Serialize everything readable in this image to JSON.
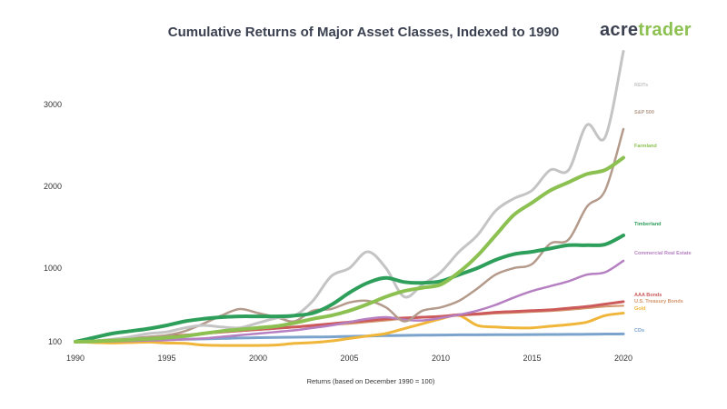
{
  "brand": {
    "part1": "acre",
    "part2": "trader"
  },
  "chart_data": {
    "type": "line",
    "title": "Cumulative Returns of Major Asset Classes, Indexed to 1990",
    "xlabel": "Returns (based on December 1990 = 100)",
    "ylabel": "",
    "xlim": [
      1990,
      2020
    ],
    "ylim": [
      100,
      3700
    ],
    "x_ticks": [
      1990,
      1995,
      2000,
      2005,
      2010,
      2015,
      2020
    ],
    "y_ticks": [
      100,
      1000,
      2000,
      3000
    ],
    "grid": false,
    "legend": "inline-right",
    "x": [
      1990,
      1991,
      1992,
      1993,
      1994,
      1995,
      1996,
      1997,
      1998,
      1999,
      2000,
      2001,
      2002,
      2003,
      2004,
      2005,
      2006,
      2007,
      2008,
      2009,
      2010,
      2011,
      2012,
      2013,
      2014,
      2015,
      2016,
      2017,
      2018,
      2019,
      2020
    ],
    "series": [
      {
        "name": "REITs",
        "color": "#c4c4c4",
        "width": 3,
        "values": [
          100,
          110,
          130,
          160,
          200,
          220,
          270,
          300,
          280,
          270,
          330,
          390,
          420,
          600,
          900,
          1000,
          1200,
          1000,
          650,
          800,
          950,
          1200,
          1400,
          1700,
          1850,
          1950,
          2200,
          2200,
          2750,
          2600,
          3650
        ]
      },
      {
        "name": "S&P 500",
        "color": "#b49a8b",
        "width": 2.5,
        "values": [
          100,
          110,
          120,
          140,
          160,
          180,
          230,
          320,
          420,
          500,
          450,
          400,
          350,
          480,
          500,
          580,
          600,
          520,
          350,
          480,
          520,
          600,
          750,
          920,
          1000,
          1050,
          1300,
          1350,
          1750,
          1950,
          2700
        ]
      },
      {
        "name": "Farmland",
        "color": "#8cc152",
        "width": 4,
        "values": [
          100,
          105,
          115,
          125,
          135,
          150,
          170,
          200,
          230,
          250,
          270,
          290,
          330,
          380,
          420,
          480,
          560,
          650,
          720,
          760,
          800,
          950,
          1150,
          1400,
          1650,
          1800,
          1950,
          2050,
          2150,
          2200,
          2350
        ]
      },
      {
        "name": "Timberland",
        "color": "#2e9e5b",
        "width": 4,
        "values": [
          100,
          150,
          200,
          230,
          260,
          300,
          350,
          380,
          400,
          410,
          410,
          410,
          420,
          450,
          550,
          700,
          820,
          880,
          830,
          820,
          840,
          920,
          1000,
          1100,
          1170,
          1200,
          1240,
          1280,
          1280,
          1290,
          1400
        ]
      },
      {
        "name": "Commercial Real Estate",
        "color": "#b57fc1",
        "width": 2.5,
        "values": [
          100,
          100,
          105,
          110,
          115,
          120,
          130,
          140,
          160,
          180,
          200,
          220,
          240,
          270,
          300,
          340,
          380,
          400,
          370,
          360,
          390,
          430,
          480,
          550,
          640,
          720,
          780,
          840,
          920,
          950,
          1090
        ]
      },
      {
        "name": "AAA Bonds",
        "color": "#cc5a5a",
        "width": 3,
        "values": [
          100,
          110,
          125,
          140,
          150,
          165,
          180,
          200,
          220,
          235,
          250,
          265,
          280,
          300,
          320,
          340,
          360,
          380,
          390,
          400,
          410,
          430,
          440,
          460,
          470,
          480,
          490,
          510,
          530,
          560,
          590
        ]
      },
      {
        "name": "U.S. Treasury Bonds",
        "color": "#d4946a",
        "width": 2,
        "values": [
          100,
          110,
          120,
          135,
          145,
          160,
          175,
          195,
          215,
          230,
          245,
          260,
          275,
          290,
          305,
          320,
          340,
          360,
          380,
          395,
          410,
          420,
          430,
          445,
          455,
          465,
          475,
          490,
          510,
          530,
          540
        ]
      },
      {
        "name": "Gold",
        "color": "#f0b63a",
        "width": 3,
        "values": [
          100,
          90,
          85,
          90,
          95,
          85,
          80,
          60,
          55,
          55,
          55,
          60,
          80,
          90,
          110,
          140,
          170,
          200,
          260,
          320,
          380,
          420,
          300,
          280,
          270,
          270,
          290,
          310,
          340,
          420,
          450
        ]
      },
      {
        "name": "CDs",
        "color": "#7ba3cc",
        "width": 3,
        "values": [
          100,
          105,
          110,
          115,
          120,
          125,
          130,
          135,
          140,
          145,
          150,
          153,
          156,
          158,
          160,
          165,
          170,
          175,
          178,
          180,
          182,
          184,
          185,
          186,
          187,
          188,
          189,
          190,
          192,
          194,
          195
        ]
      }
    ]
  }
}
